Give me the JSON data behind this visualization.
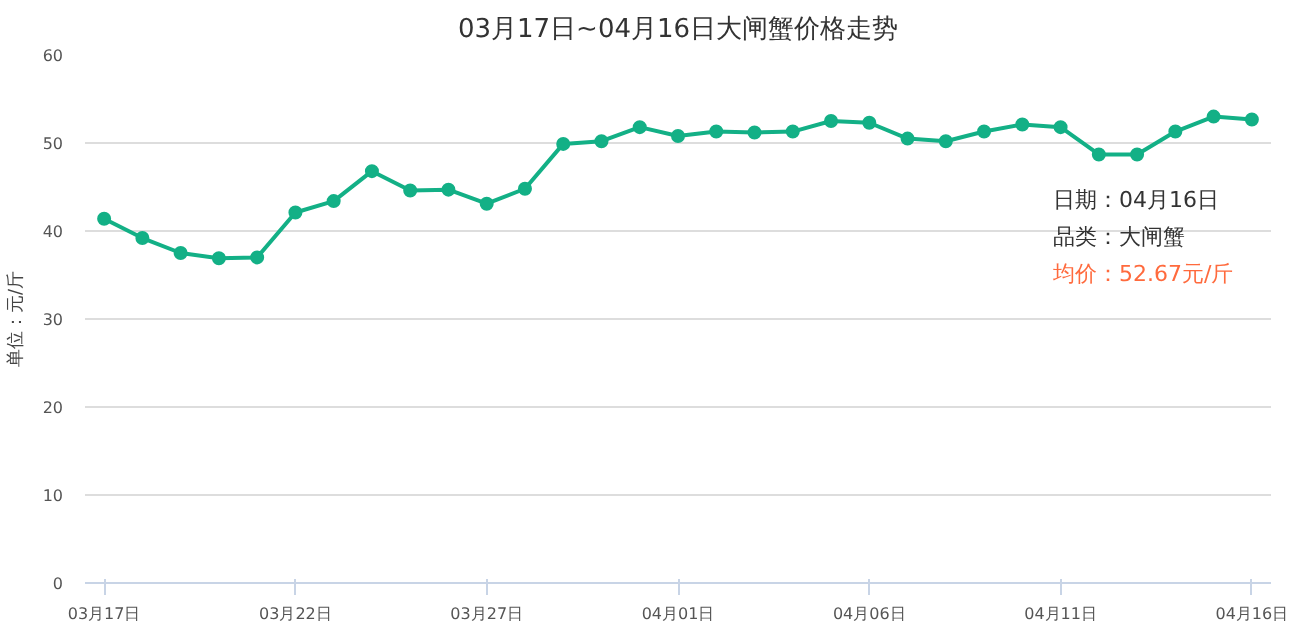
{
  "chart_data": {
    "type": "line",
    "title": "03月17日~04月16日大闸蟹价格走势",
    "ylabel": "单位：元/斤",
    "categories": [
      "03月17日",
      null,
      null,
      null,
      null,
      "03月22日",
      null,
      null,
      null,
      null,
      "03月27日",
      null,
      null,
      null,
      null,
      "04月01日",
      null,
      null,
      null,
      null,
      "04月06日",
      null,
      null,
      null,
      null,
      "04月11日",
      null,
      null,
      null,
      null,
      "04月16日"
    ],
    "series": [
      {
        "color": "#13b086",
        "values": [
          41.4,
          39.2,
          37.5,
          36.9,
          37.0,
          42.1,
          43.4,
          46.8,
          44.6,
          44.7,
          43.1,
          44.8,
          49.9,
          50.2,
          51.8,
          50.8,
          51.3,
          51.2,
          51.3,
          52.5,
          52.3,
          50.5,
          50.2,
          51.3,
          52.1,
          51.8,
          48.7,
          48.7,
          51.3,
          53.0,
          52.67
        ]
      }
    ],
    "ylim": [
      0,
      60
    ],
    "yticks": [
      0,
      10,
      20,
      30,
      40,
      50,
      60
    ],
    "grid": "y",
    "marker": "circle",
    "line_style": "solid",
    "annotations": [
      "日期：04月16日",
      "品类：大闸蟹",
      "均价：52.67元/斤"
    ]
  }
}
